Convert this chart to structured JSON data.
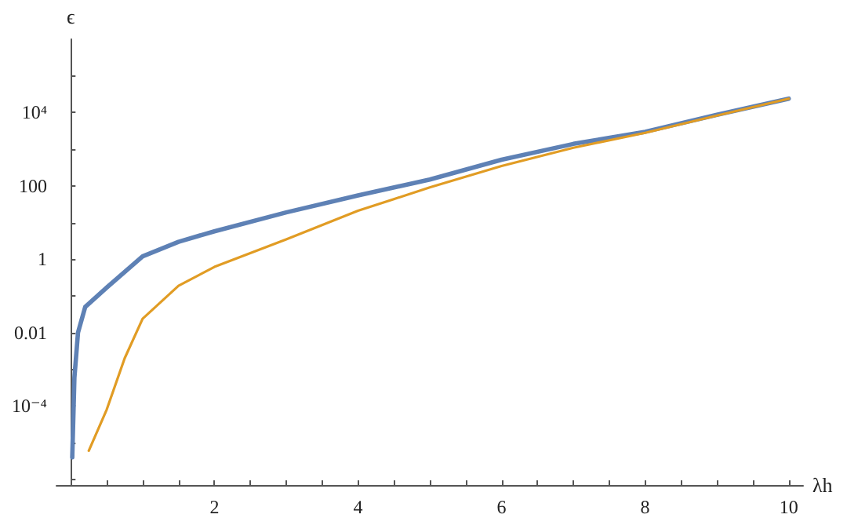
{
  "chart_data": {
    "type": "line",
    "xlabel": "λh",
    "ylabel": "ϵ",
    "log": "y",
    "grid": false,
    "marker": "none",
    "line_style": "solid",
    "xlim": [
      -0.2,
      10.2
    ],
    "xticks": [
      {
        "value": 0.5,
        "label": null
      },
      {
        "value": 1,
        "label": null
      },
      {
        "value": 1.5,
        "label": null
      },
      2,
      {
        "value": 2.5,
        "label": null
      },
      {
        "value": 3,
        "label": null
      },
      {
        "value": 3.5,
        "label": null
      },
      4,
      {
        "value": 4.5,
        "label": null
      },
      {
        "value": 5,
        "label": null
      },
      {
        "value": 5.5,
        "label": null
      },
      6,
      {
        "value": 6.5,
        "label": null
      },
      {
        "value": 7,
        "label": null
      },
      {
        "value": 7.5,
        "label": null
      },
      8,
      {
        "value": 8.5,
        "label": null
      },
      {
        "value": 9,
        "label": null
      },
      {
        "value": 9.5,
        "label": null
      },
      10
    ],
    "ylim": [
      7e-07,
      1000000
    ],
    "yticks": [
      {
        "value": 1e-06,
        "label": null
      },
      {
        "value": 1e-05,
        "label": null
      },
      {
        "value": 0.0001,
        "label": "10⁻⁴"
      },
      {
        "value": 0.001,
        "label": null
      },
      0.01,
      {
        "value": 0.1,
        "label": null
      },
      1,
      {
        "value": 10,
        "label": null
      },
      100,
      {
        "value": 1000,
        "label": null
      },
      {
        "value": 10000,
        "label": "10⁴"
      },
      {
        "value": 100000,
        "label": null
      }
    ],
    "series": [
      {
        "color": "#5e81b5",
        "x": [
          0.02,
          0.05,
          0.1,
          0.2,
          0.5,
          1,
          1.5,
          2,
          3,
          4,
          5,
          6,
          7,
          8,
          9,
          10
        ],
        "values": [
          4e-06,
          0.0006,
          0.01,
          0.05,
          0.17,
          1.2,
          3,
          5.8,
          19,
          55,
          150,
          520,
          1400,
          3000,
          8700,
          24000
        ]
      },
      {
        "color": "#e19c24",
        "x": [
          0.25,
          0.5,
          0.75,
          1,
          1.5,
          2,
          3,
          4,
          5,
          6,
          7,
          8,
          9,
          10
        ],
        "values": [
          6e-06,
          8e-05,
          0.002,
          0.024,
          0.19,
          0.62,
          3.5,
          21,
          91,
          350,
          1100,
          2800,
          8300,
          24000
        ]
      }
    ]
  }
}
